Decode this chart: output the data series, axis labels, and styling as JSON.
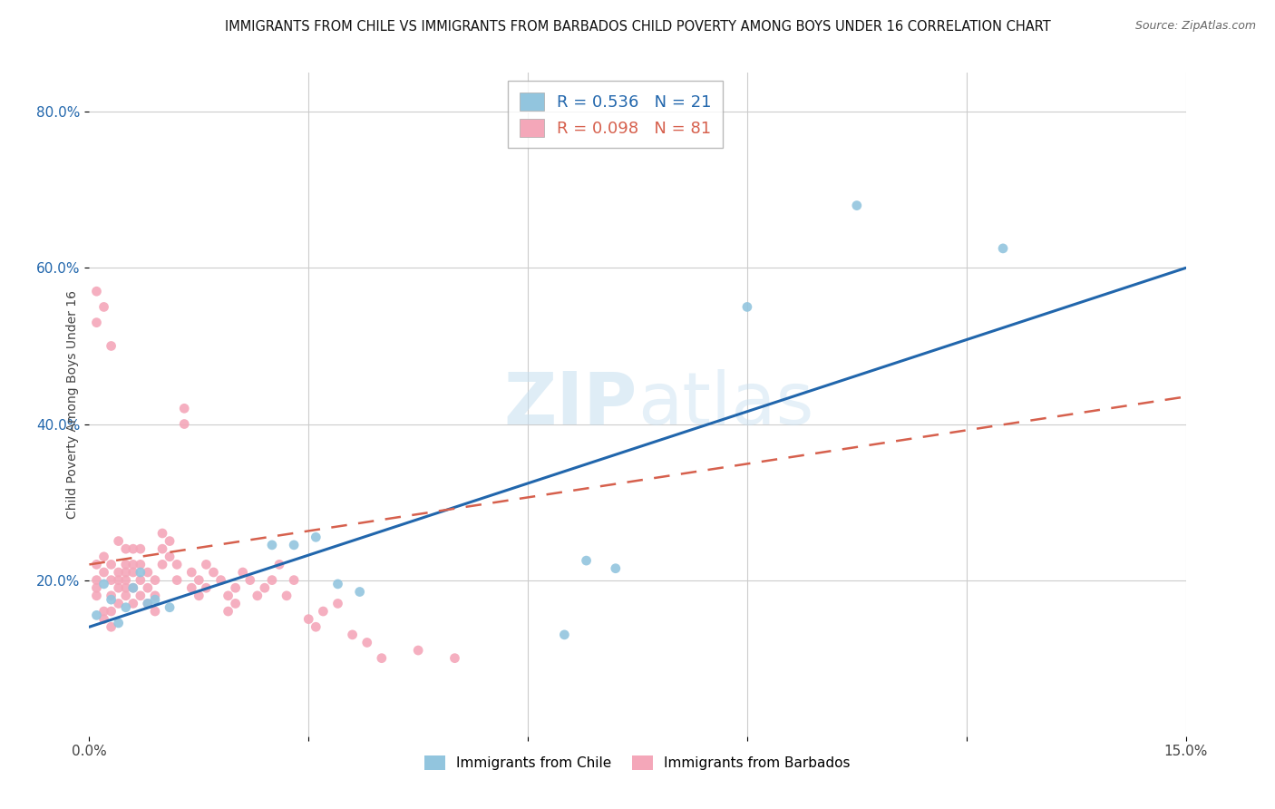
{
  "title": "IMMIGRANTS FROM CHILE VS IMMIGRANTS FROM BARBADOS CHILD POVERTY AMONG BOYS UNDER 16 CORRELATION CHART",
  "source": "Source: ZipAtlas.com",
  "ylabel": "Child Poverty Among Boys Under 16",
  "chile_R": 0.536,
  "chile_N": 21,
  "barbados_R": 0.098,
  "barbados_N": 81,
  "chile_color": "#92c5de",
  "barbados_color": "#f4a7b9",
  "chile_line_color": "#2166ac",
  "barbados_line_color": "#d6604d",
  "legend_label_chile": "Immigrants from Chile",
  "legend_label_barbados": "Immigrants from Barbados",
  "xlim": [
    0.0,
    0.15
  ],
  "ylim": [
    0.0,
    0.85
  ],
  "yticks": [
    0.2,
    0.4,
    0.6,
    0.8
  ],
  "ytick_labels": [
    "20.0%",
    "40.0%",
    "60.0%",
    "80.0%"
  ],
  "xticks": [
    0.0,
    0.03,
    0.06,
    0.09,
    0.12,
    0.15
  ],
  "xtick_labels": [
    "0.0%",
    "",
    "",
    "",
    "",
    "15.0%"
  ],
  "chile_line_x0": 0.0,
  "chile_line_y0": 0.14,
  "chile_line_x1": 0.15,
  "chile_line_y1": 0.6,
  "barbados_line_x0": 0.0,
  "barbados_line_y0": 0.22,
  "barbados_line_x1": 0.15,
  "barbados_line_y1": 0.435,
  "chile_x": [
    0.001,
    0.002,
    0.003,
    0.004,
    0.005,
    0.006,
    0.007,
    0.008,
    0.009,
    0.011,
    0.025,
    0.028,
    0.031,
    0.034,
    0.037,
    0.065,
    0.068,
    0.072,
    0.09,
    0.105,
    0.125
  ],
  "chile_y": [
    0.155,
    0.195,
    0.175,
    0.145,
    0.165,
    0.19,
    0.21,
    0.17,
    0.175,
    0.165,
    0.245,
    0.245,
    0.255,
    0.195,
    0.185,
    0.13,
    0.225,
    0.215,
    0.55,
    0.68,
    0.625
  ],
  "barbados_x": [
    0.001,
    0.001,
    0.001,
    0.001,
    0.001,
    0.001,
    0.002,
    0.002,
    0.002,
    0.002,
    0.002,
    0.003,
    0.003,
    0.003,
    0.003,
    0.003,
    0.003,
    0.004,
    0.004,
    0.004,
    0.004,
    0.004,
    0.005,
    0.005,
    0.005,
    0.005,
    0.005,
    0.005,
    0.006,
    0.006,
    0.006,
    0.006,
    0.006,
    0.007,
    0.007,
    0.007,
    0.007,
    0.008,
    0.008,
    0.008,
    0.009,
    0.009,
    0.009,
    0.01,
    0.01,
    0.01,
    0.011,
    0.011,
    0.012,
    0.012,
    0.013,
    0.013,
    0.014,
    0.014,
    0.015,
    0.015,
    0.016,
    0.016,
    0.017,
    0.018,
    0.019,
    0.019,
    0.02,
    0.02,
    0.021,
    0.022,
    0.023,
    0.024,
    0.025,
    0.026,
    0.027,
    0.028,
    0.03,
    0.031,
    0.032,
    0.034,
    0.036,
    0.038,
    0.04,
    0.045,
    0.05
  ],
  "barbados_y": [
    0.18,
    0.2,
    0.22,
    0.19,
    0.57,
    0.53,
    0.21,
    0.23,
    0.15,
    0.16,
    0.55,
    0.5,
    0.2,
    0.22,
    0.18,
    0.16,
    0.14,
    0.17,
    0.21,
    0.25,
    0.19,
    0.2,
    0.22,
    0.24,
    0.19,
    0.21,
    0.18,
    0.2,
    0.22,
    0.24,
    0.17,
    0.19,
    0.21,
    0.18,
    0.2,
    0.22,
    0.24,
    0.17,
    0.19,
    0.21,
    0.16,
    0.18,
    0.2,
    0.24,
    0.26,
    0.22,
    0.23,
    0.25,
    0.22,
    0.2,
    0.4,
    0.42,
    0.21,
    0.19,
    0.18,
    0.2,
    0.22,
    0.19,
    0.21,
    0.2,
    0.18,
    0.16,
    0.17,
    0.19,
    0.21,
    0.2,
    0.18,
    0.19,
    0.2,
    0.22,
    0.18,
    0.2,
    0.15,
    0.14,
    0.16,
    0.17,
    0.13,
    0.12,
    0.1,
    0.11,
    0.1
  ]
}
